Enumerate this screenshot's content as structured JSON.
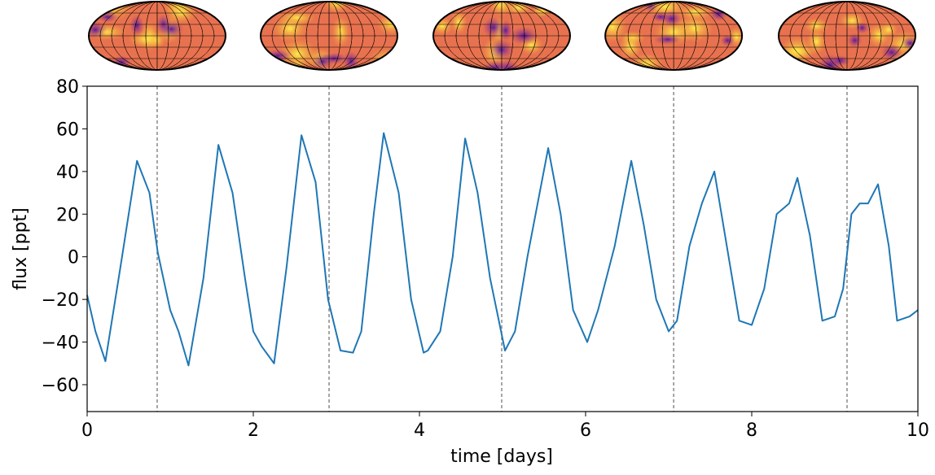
{
  "chart_data": {
    "type": "line",
    "xlabel": "time [days]",
    "ylabel": "flux [ppt]",
    "xlim": [
      0,
      10
    ],
    "ylim": [
      -72.6,
      80
    ],
    "xticks": [
      0,
      2,
      4,
      6,
      8,
      10
    ],
    "yticks": [
      {
        "value": -60,
        "label": "−60"
      },
      {
        "value": -40,
        "label": "−40"
      },
      {
        "value": -20,
        "label": "−20"
      },
      0,
      20,
      40,
      60,
      80
    ],
    "vlines": [
      0.843,
      2.912,
      4.99,
      7.06,
      9.147
    ],
    "series": [
      {
        "color": "#1f77b4",
        "x": [
          0,
          0.1,
          0.22,
          0.4,
          0.6,
          0.75,
          0.85,
          1.0,
          1.1,
          1.22,
          1.4,
          1.58,
          1.75,
          1.9,
          2.0,
          2.1,
          2.25,
          2.4,
          2.58,
          2.75,
          2.9,
          3.05,
          3.2,
          3.3,
          3.45,
          3.57,
          3.75,
          3.9,
          4.05,
          4.1,
          4.25,
          4.4,
          4.55,
          4.7,
          4.85,
          5.03,
          5.15,
          5.3,
          5.55,
          5.7,
          5.85,
          6.02,
          6.15,
          6.35,
          6.55,
          6.7,
          6.85,
          7.0,
          7.1,
          7.25,
          7.4,
          7.55,
          7.7,
          7.85,
          8.0,
          8.15,
          8.3,
          8.45,
          8.55,
          8.7,
          8.85,
          9.0,
          9.1,
          9.2,
          9.3,
          9.4,
          9.52,
          9.65,
          9.75,
          9.9,
          10
        ],
        "values": [
          -18,
          -35,
          -49,
          -5,
          45,
          30,
          2,
          -25,
          -35,
          -51,
          -10,
          52.5,
          30,
          -10,
          -35,
          -42,
          -50,
          -5,
          57,
          35,
          -20,
          -44,
          -45,
          -35,
          20,
          58,
          30,
          -20,
          -45,
          -44,
          -35,
          0,
          55.5,
          30,
          -10,
          -44,
          -35,
          0,
          51,
          20,
          -25,
          -40,
          -25,
          5,
          45,
          15,
          -20,
          -35,
          -30,
          5,
          25,
          40,
          5,
          -30,
          -32,
          -15,
          20,
          25,
          37,
          10,
          -30,
          -28,
          -15,
          20,
          25,
          25,
          34,
          5,
          -30,
          -28,
          -25
        ]
      }
    ]
  }
}
